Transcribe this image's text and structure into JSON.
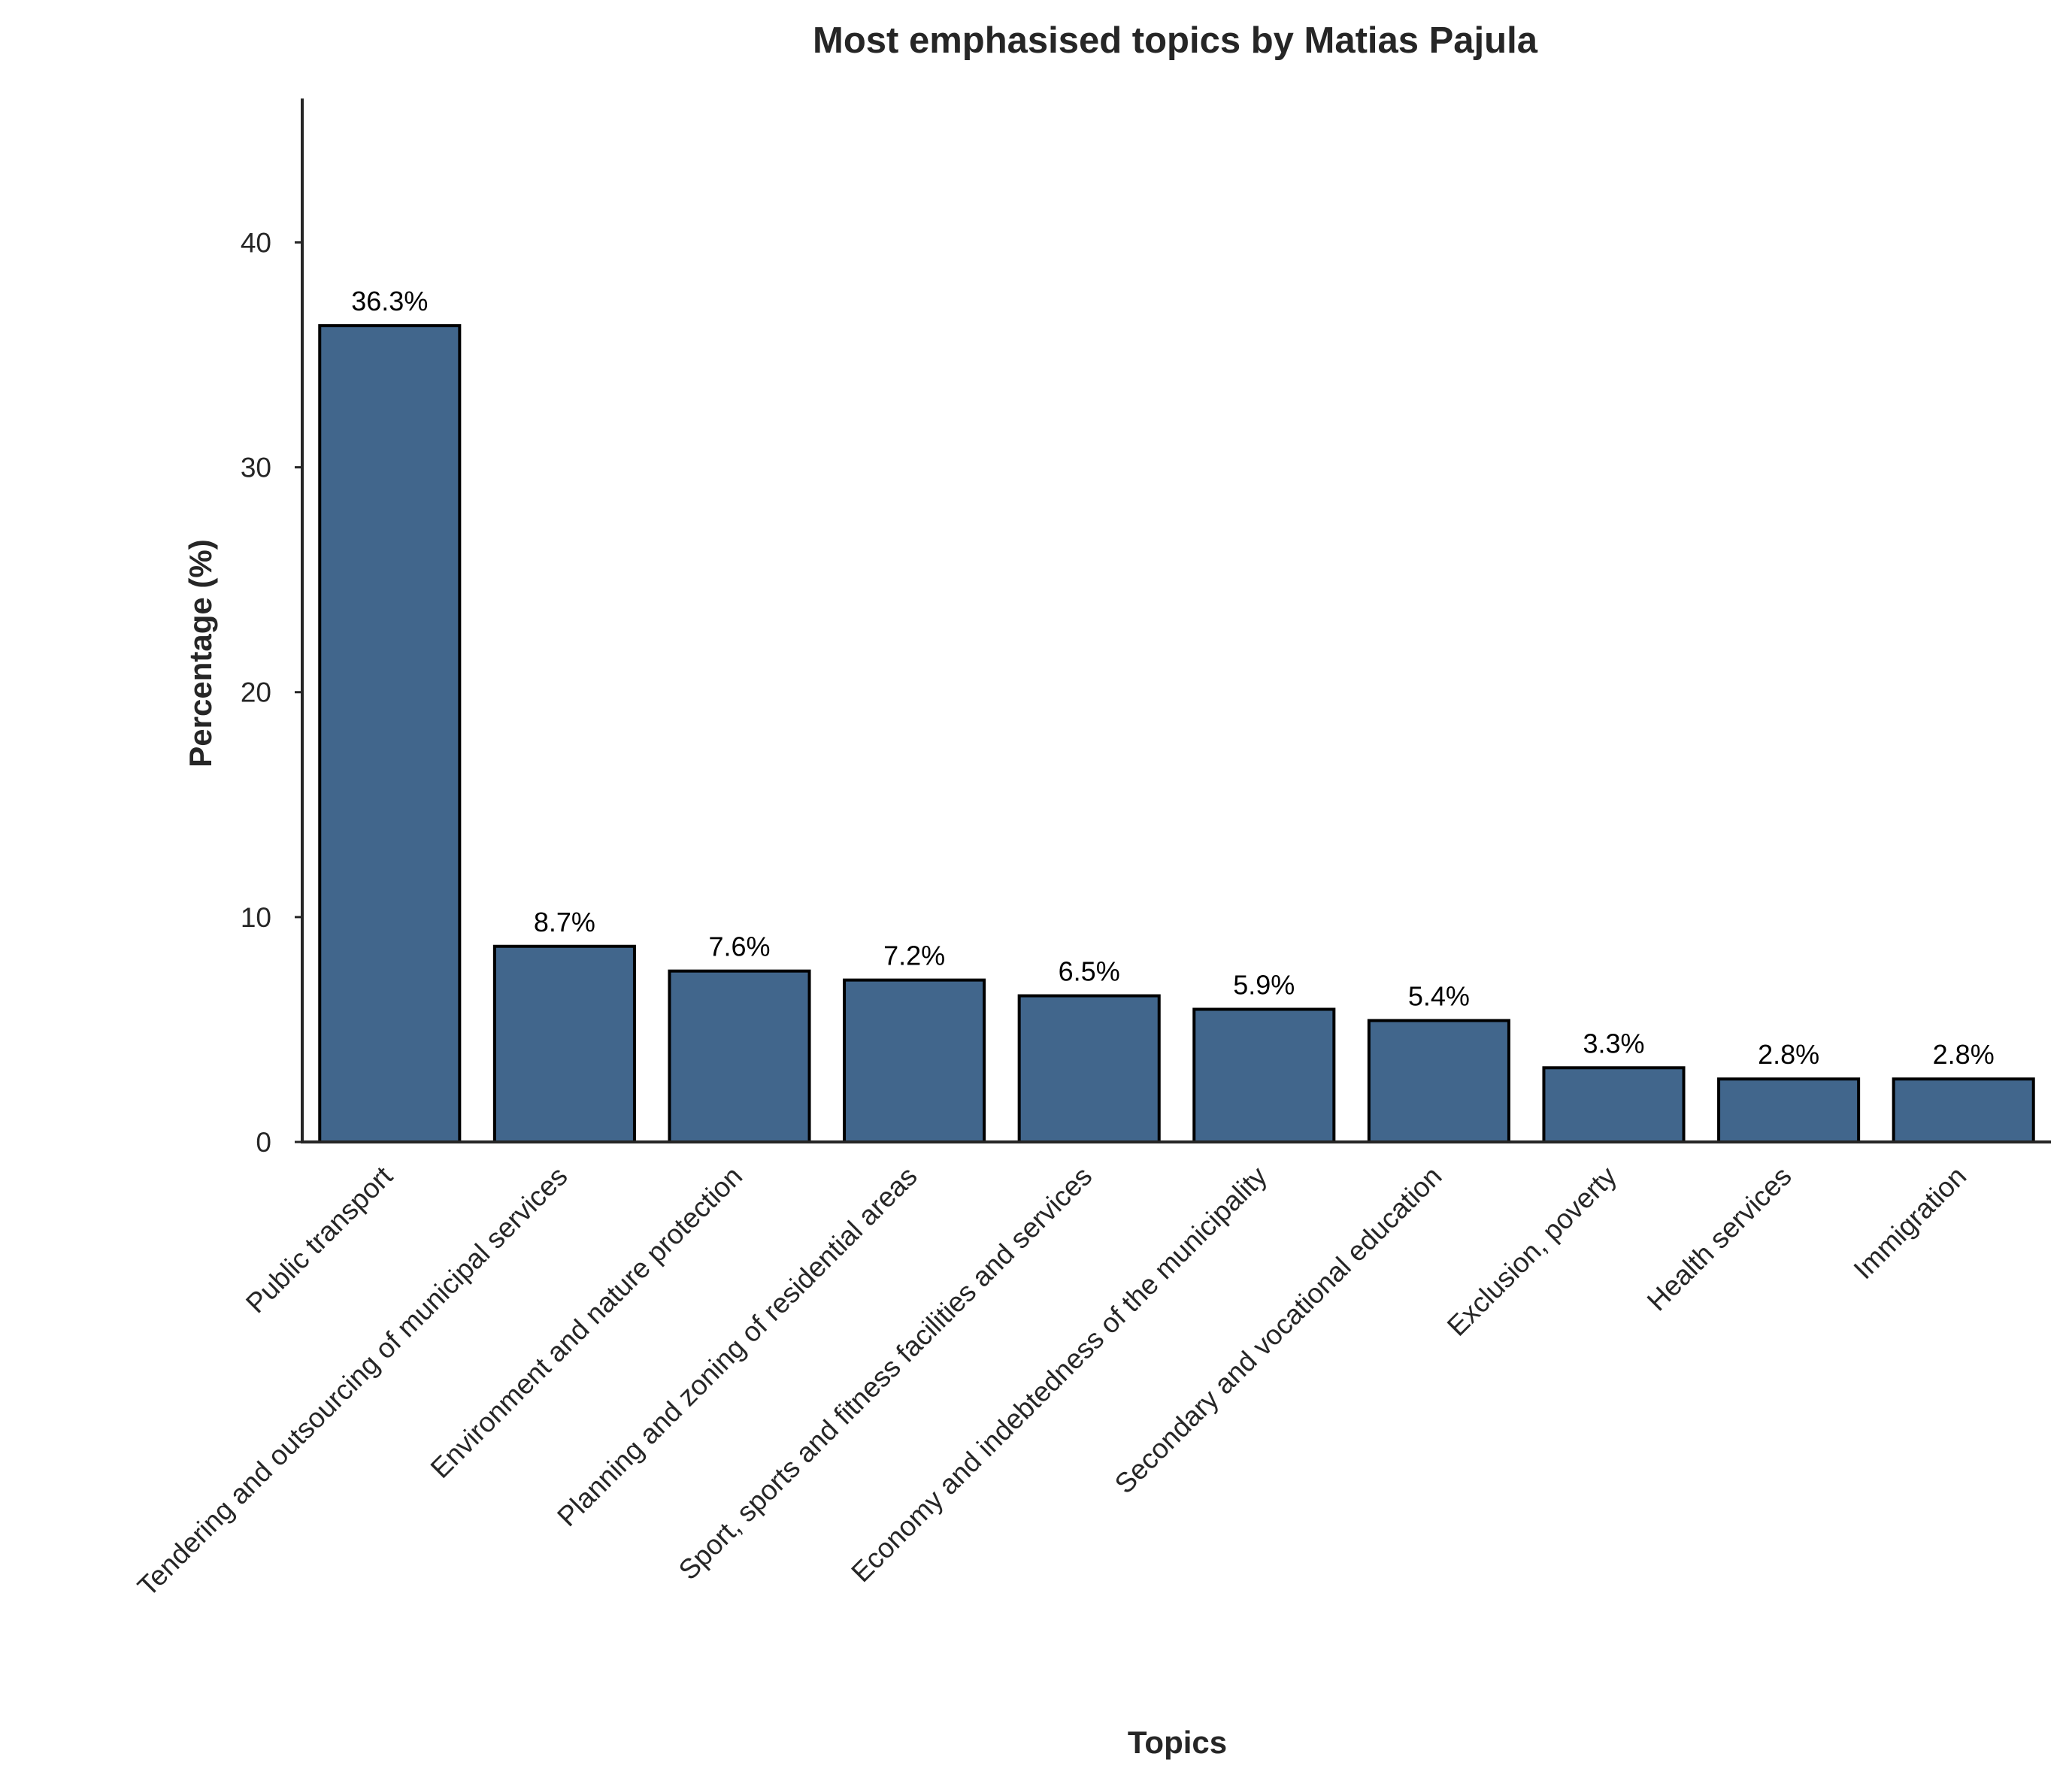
{
  "chart_data": {
    "type": "bar",
    "title": "Most emphasised topics by Matias Pajula",
    "xlabel": "Topics",
    "ylabel": "Percentage (%)",
    "categories": [
      "Public transport",
      "Tendering and outsourcing of municipal services",
      "Environment and nature protection",
      "Planning and zoning of residential areas",
      "Sport, sports and fitness facilities and services",
      "Economy and indebtedness of the municipality",
      "Secondary and vocational education",
      "Exclusion, poverty",
      "Health services",
      "Immigration"
    ],
    "values": [
      36.3,
      8.7,
      7.6,
      7.2,
      6.5,
      5.9,
      5.4,
      3.3,
      2.8,
      2.8
    ],
    "data_labels": [
      "36.3%",
      "8.7%",
      "7.6%",
      "7.2%",
      "6.5%",
      "5.9%",
      "5.4%",
      "3.3%",
      "2.8%",
      "2.8%"
    ],
    "yticks": [
      0,
      10,
      20,
      30,
      40
    ],
    "ylim": [
      0,
      46.4
    ],
    "grid": false,
    "bar_color": "#41668c",
    "edge_color": "#000000"
  }
}
